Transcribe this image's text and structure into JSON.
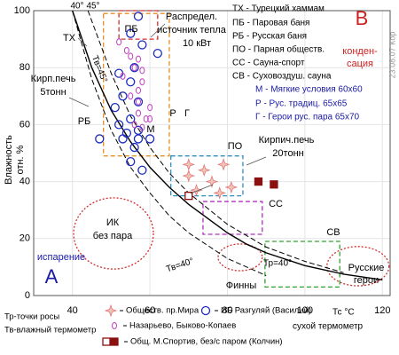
{
  "chart_data": {
    "type": "scatter",
    "xlim": [
      30,
      122
    ],
    "ylim": [
      0,
      100
    ],
    "xticks": [
      40,
      60,
      80,
      100,
      120
    ],
    "yticks": [
      0,
      20,
      40,
      60,
      80,
      100
    ],
    "grid": true,
    "x_label": "сухой термометр",
    "x_unit_label": "Тс °C",
    "y_label": [
      "Влажность",
      "отн. %"
    ],
    "series": [
      {
        "name": "Обществ. пр.Мира",
        "marker": "star",
        "color": "#e07878",
        "x": [
          70,
          74,
          79,
          70,
          76,
          72,
          78,
          81
        ],
        "values": [
          46,
          44,
          46,
          42,
          40,
          37,
          36,
          38
        ]
      },
      {
        "name": "ИБ Разгуляй (Василий)",
        "marker": "circle",
        "color": "#1c2cc0",
        "x": [
          57,
          55,
          62,
          58,
          56,
          52,
          55,
          53,
          57,
          51,
          55,
          52,
          57,
          54,
          47,
          53,
          57,
          60,
          56,
          55,
          58
        ],
        "values": [
          98,
          92,
          85,
          88,
          80,
          78,
          75,
          70,
          68,
          66,
          62,
          60,
          58,
          57,
          55,
          55,
          55,
          55,
          52,
          47,
          44
        ]
      },
      {
        "name": "Назарьево, Быково-Копаев",
        "marker": "small-circle",
        "color": "#c040c0",
        "x": [
          52,
          54,
          55,
          57,
          56,
          58,
          53,
          58,
          57,
          55,
          57,
          60,
          57,
          59,
          56,
          58,
          60
        ],
        "values": [
          89,
          86,
          84,
          83,
          80,
          79,
          77,
          75,
          72,
          70,
          68,
          66,
          64,
          62,
          60,
          59,
          62
        ]
      },
      {
        "name": "Общ. М.Спортив, без/с паром (Колчин)",
        "marker": "square",
        "color": "#8b1010",
        "filled": [
          false,
          true,
          true
        ],
        "x": [
          70,
          88,
          92
        ],
        "values": [
          35,
          40,
          39
        ]
      }
    ],
    "curves": [
      {
        "label": "Тр=40°",
        "style": "solid",
        "x": [
          40,
          45,
          50,
          55,
          60,
          65,
          70,
          75,
          80,
          85,
          90,
          100,
          110,
          120
        ],
        "values": [
          100,
          80,
          65,
          54,
          45,
          38,
          32,
          27,
          22,
          18,
          15,
          10.5,
          7.5,
          5.5
        ]
      },
      {
        "label": "Тв=45°",
        "style": "dashed",
        "x": [
          44,
          50,
          55,
          60,
          65,
          70,
          80,
          90,
          100,
          110
        ],
        "values": [
          100,
          78,
          63,
          52,
          43,
          36,
          25,
          17,
          12,
          8
        ]
      },
      {
        "label": "Тв=40°",
        "style": "dashed",
        "x": [
          40,
          45,
          50,
          55,
          60,
          65,
          70,
          80,
          90
        ],
        "values": [
          100,
          76,
          58,
          45,
          36,
          28,
          22,
          13,
          7
        ]
      }
    ],
    "zones": [
      {
        "shape": "rect",
        "color": "#d03030",
        "x": [
          52,
          62
        ],
        "y": [
          90,
          100
        ]
      },
      {
        "shape": "rect",
        "color": "#e8902a",
        "x": [
          48,
          65
        ],
        "y": [
          49,
          99
        ]
      },
      {
        "shape": "rect",
        "color": "#3090c0",
        "x": [
          65.4,
          84
        ],
        "y": [
          35,
          49
        ]
      },
      {
        "shape": "rect",
        "color": "#b030c0",
        "x": [
          73.7,
          89
        ],
        "y": [
          21.5,
          33
        ]
      },
      {
        "shape": "rect",
        "color": "#30a030",
        "x": [
          89.7,
          109
        ],
        "y": [
          3,
          19
        ]
      },
      {
        "shape": "ellipse",
        "color": "#d03030",
        "x": [
          40.3,
          60.9
        ],
        "y": [
          9.3,
          34.3
        ]
      },
      {
        "shape": "ellipse",
        "color": "#d03030",
        "x": [
          77.6,
          89
        ],
        "y": [
          8.7,
          18.1
        ]
      },
      {
        "shape": "ellipse",
        "color": "#d03030",
        "x": [
          105.7,
          121.7
        ],
        "y": [
          3.4,
          17.2
        ]
      }
    ],
    "annotations": [
      {
        "text": "ТХ",
        "color": "#000"
      },
      {
        "text": "ПБ",
        "color": "#000"
      },
      {
        "text": "Распредел.",
        "color": "#000"
      },
      {
        "text": "источник тепла",
        "color": "#000"
      },
      {
        "text": "10 кВт",
        "color": "#000"
      },
      {
        "text": "Кирп.печь",
        "color": "#000"
      },
      {
        "text": "5тонн",
        "color": "#000"
      },
      {
        "text": "РБ",
        "color": "#000"
      },
      {
        "text": "М",
        "color": "#000"
      },
      {
        "text": "Р",
        "color": "#000"
      },
      {
        "text": "Г",
        "color": "#000"
      },
      {
        "text": "ПО",
        "color": "#000"
      },
      {
        "text": "Кирпич.печь",
        "color": "#000"
      },
      {
        "text": "20тонн",
        "color": "#000"
      },
      {
        "text": "СС",
        "color": "#000"
      },
      {
        "text": "СВ",
        "color": "#000"
      },
      {
        "text": "ИК",
        "color": "#000"
      },
      {
        "text": "без пара",
        "color": "#000"
      },
      {
        "text": "испарение",
        "color": "#1a1aa6"
      },
      {
        "text": "А",
        "color": "#1a1aa6"
      },
      {
        "text": "Финны",
        "color": "#000"
      },
      {
        "text": "Русские",
        "color": "#000"
      },
      {
        "text": "герои",
        "color": "#000"
      },
      {
        "text": "40°",
        "color": "#000"
      },
      {
        "text": "45°",
        "color": "#000"
      },
      {
        "text": "В",
        "color": "#d02020"
      },
      {
        "text": "конден-",
        "color": "#d02020"
      },
      {
        "text": "сация",
        "color": "#d02020"
      },
      {
        "text": "23.08.07 Кор",
        "color": "#999"
      },
      {
        "text": "ТХ - Турецкий хаммам",
        "color": "#000"
      },
      {
        "text": "ПБ - Паровая баня",
        "color": "#000"
      },
      {
        "text": "РБ - Русская баня",
        "color": "#000"
      },
      {
        "text": "ПО - Парная обществ.",
        "color": "#000"
      },
      {
        "text": "СС - Сауна-спорт",
        "color": "#000"
      },
      {
        "text": "СВ - Суховоздуш. сауна",
        "color": "#000"
      },
      {
        "text": "М - Мягкие условия 60х60",
        "color": "#1a1aa6"
      },
      {
        "text": "Р - Рус. традиц.      65х65",
        "color": "#1a1aa6"
      },
      {
        "text": "Г - Герои рус. пара  65х70",
        "color": "#1a1aa6"
      },
      {
        "text": "Тр-точки росы",
        "color": "#000"
      },
      {
        "text": "Тв-влажный термометр",
        "color": "#000"
      }
    ]
  }
}
